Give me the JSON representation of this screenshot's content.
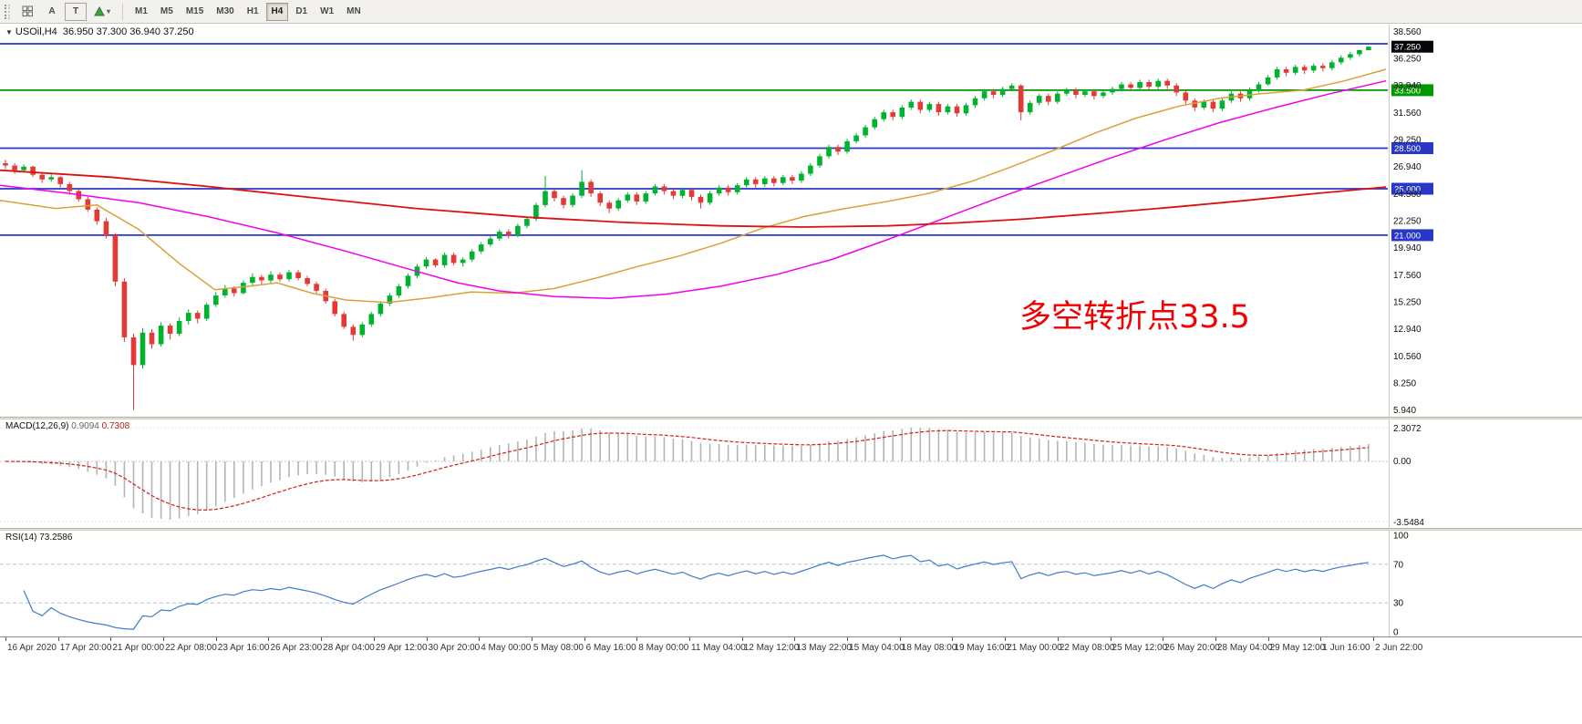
{
  "toolbar": {
    "tools": {
      "annotate_a": "A",
      "annotate_t": "T",
      "dropdown_chevron": "▾"
    },
    "timeframes": [
      "M1",
      "M5",
      "M15",
      "M30",
      "H1",
      "H4",
      "D1",
      "W1",
      "MN"
    ],
    "active_timeframe": "H4"
  },
  "chart": {
    "collapse_arrow": "▼",
    "symbol_period": "USOil,H4",
    "ohlc_readout": "36.950 37.300 36.940 37.250",
    "annotation": {
      "text": "多空转折点33.5",
      "color": "#f10000"
    }
  },
  "chart_data": {
    "type": "candlestick",
    "symbol": "USOil",
    "timeframe": "H4",
    "current_price": "37.250",
    "ohlc_last": {
      "open": "36.950",
      "high": "37.300",
      "low": "36.940",
      "close": "37.250"
    },
    "price_range": {
      "min": 5.35,
      "max": 39.15
    },
    "price_axis_labels": [
      "38.560",
      "36.250",
      "33.940",
      "31.560",
      "29.250",
      "26.940",
      "24.560",
      "22.250",
      "19.940",
      "17.560",
      "15.250",
      "12.940",
      "10.560",
      "8.250",
      "5.940"
    ],
    "time_axis_labels": [
      "16 Apr 2020",
      "17 Apr 20:00",
      "21 Apr 00:00",
      "22 Apr 08:00",
      "23 Apr 16:00",
      "26 Apr 23:00",
      "28 Apr 04:00",
      "29 Apr 12:00",
      "30 Apr 20:00",
      "4 May 00:00",
      "5 May 08:00",
      "6 May 16:00",
      "8 May 00:00",
      "11 May 04:00",
      "12 May 12:00",
      "13 May 22:00",
      "15 May 04:00",
      "18 May 08:00",
      "19 May 16:00",
      "21 May 00:00",
      "22 May 08:00",
      "25 May 12:00",
      "26 May 20:00",
      "28 May 04:00",
      "29 May 12:00",
      "1 Jun 16:00",
      "2 Jun 22:00"
    ],
    "colors": {
      "bull": "#00b22d",
      "bear": "#e53935",
      "price_box": "#06060a"
    },
    "horizontal_lines": [
      {
        "price": 37.5,
        "color": "#2937c8",
        "label": ""
      },
      {
        "price": 33.5,
        "color": "#009a00",
        "label": "33.500"
      },
      {
        "price": 28.5,
        "color": "#2937c8",
        "label": "28.500"
      },
      {
        "price": 25.0,
        "color": "#2937c8",
        "label": "25.000"
      },
      {
        "price": 21.0,
        "color": "#2937c8",
        "label": "21.000"
      }
    ],
    "moving_averages": [
      {
        "name": "ma-fast-orange",
        "color": "#d9a13a",
        "points": [
          [
            0,
            24.0
          ],
          [
            0.04,
            23.3
          ],
          [
            0.07,
            23.6
          ],
          [
            0.1,
            21.5
          ],
          [
            0.13,
            18.5
          ],
          [
            0.155,
            16.3
          ],
          [
            0.18,
            16.6
          ],
          [
            0.2,
            16.9
          ],
          [
            0.225,
            16.0
          ],
          [
            0.25,
            15.4
          ],
          [
            0.28,
            15.2
          ],
          [
            0.31,
            15.6
          ],
          [
            0.34,
            16.1
          ],
          [
            0.37,
            16.0
          ],
          [
            0.4,
            16.4
          ],
          [
            0.43,
            17.3
          ],
          [
            0.46,
            18.3
          ],
          [
            0.49,
            19.2
          ],
          [
            0.52,
            20.3
          ],
          [
            0.55,
            21.6
          ],
          [
            0.58,
            22.6
          ],
          [
            0.61,
            23.3
          ],
          [
            0.64,
            23.9
          ],
          [
            0.67,
            24.6
          ],
          [
            0.7,
            25.6
          ],
          [
            0.73,
            26.9
          ],
          [
            0.76,
            28.3
          ],
          [
            0.79,
            29.8
          ],
          [
            0.82,
            31.1
          ],
          [
            0.85,
            32.1
          ],
          [
            0.88,
            32.8
          ],
          [
            0.91,
            33.2
          ],
          [
            0.94,
            33.5
          ],
          [
            0.97,
            34.3
          ],
          [
            1.0,
            35.3
          ]
        ]
      },
      {
        "name": "ma-mid-magenta",
        "color": "#f000f0",
        "points": [
          [
            0,
            25.3
          ],
          [
            0.05,
            24.6
          ],
          [
            0.1,
            23.8
          ],
          [
            0.15,
            22.6
          ],
          [
            0.2,
            21.2
          ],
          [
            0.25,
            19.6
          ],
          [
            0.3,
            17.9
          ],
          [
            0.33,
            16.9
          ],
          [
            0.36,
            16.2
          ],
          [
            0.4,
            15.7
          ],
          [
            0.44,
            15.55
          ],
          [
            0.48,
            15.9
          ],
          [
            0.52,
            16.6
          ],
          [
            0.56,
            17.6
          ],
          [
            0.6,
            18.9
          ],
          [
            0.64,
            20.6
          ],
          [
            0.68,
            22.4
          ],
          [
            0.72,
            24.2
          ],
          [
            0.76,
            25.9
          ],
          [
            0.8,
            27.6
          ],
          [
            0.84,
            29.2
          ],
          [
            0.88,
            30.7
          ],
          [
            0.92,
            32.0
          ],
          [
            0.96,
            33.2
          ],
          [
            1.0,
            34.3
          ]
        ]
      },
      {
        "name": "ma-slow-red",
        "color": "#dd1111",
        "points": [
          [
            0,
            26.6
          ],
          [
            0.08,
            26.0
          ],
          [
            0.15,
            25.2
          ],
          [
            0.22,
            24.3
          ],
          [
            0.3,
            23.3
          ],
          [
            0.38,
            22.55
          ],
          [
            0.45,
            22.1
          ],
          [
            0.52,
            21.8
          ],
          [
            0.58,
            21.7
          ],
          [
            0.64,
            21.8
          ],
          [
            0.69,
            22.05
          ],
          [
            0.74,
            22.4
          ],
          [
            0.8,
            22.95
          ],
          [
            0.85,
            23.45
          ],
          [
            0.9,
            24.0
          ],
          [
            0.95,
            24.6
          ],
          [
            1.0,
            25.15
          ]
        ]
      }
    ],
    "candles": [
      [
        27.2,
        27.5,
        26.7,
        27.0
      ],
      [
        27.0,
        27.2,
        26.3,
        26.6
      ],
      [
        26.6,
        27.1,
        26.4,
        26.9
      ],
      [
        26.9,
        27.0,
        26.0,
        26.2
      ],
      [
        26.2,
        26.4,
        25.5,
        25.8
      ],
      [
        25.8,
        26.3,
        25.6,
        26.0
      ],
      [
        26.0,
        26.1,
        25.1,
        25.4
      ],
      [
        25.4,
        25.6,
        24.5,
        24.8
      ],
      [
        24.8,
        25.0,
        23.9,
        24.1
      ],
      [
        24.1,
        24.3,
        23.0,
        23.2
      ],
      [
        23.2,
        23.4,
        21.9,
        22.2
      ],
      [
        22.2,
        22.5,
        20.7,
        21.0
      ],
      [
        21.0,
        21.2,
        16.6,
        17.0
      ],
      [
        17.0,
        17.3,
        11.8,
        12.2
      ],
      [
        12.2,
        12.5,
        5.94,
        9.8
      ],
      [
        9.8,
        13.0,
        9.5,
        12.6
      ],
      [
        12.6,
        12.9,
        11.2,
        11.6
      ],
      [
        11.6,
        13.5,
        11.4,
        13.2
      ],
      [
        13.2,
        13.4,
        12.0,
        12.5
      ],
      [
        12.5,
        13.9,
        12.3,
        13.6
      ],
      [
        13.6,
        14.6,
        13.3,
        14.3
      ],
      [
        14.3,
        14.5,
        13.4,
        13.8
      ],
      [
        13.8,
        15.2,
        13.6,
        15.0
      ],
      [
        15.0,
        16.1,
        14.8,
        15.8
      ],
      [
        15.8,
        16.7,
        15.6,
        16.4
      ],
      [
        16.4,
        16.6,
        15.7,
        16.0
      ],
      [
        16.0,
        17.1,
        15.9,
        16.9
      ],
      [
        16.9,
        17.7,
        16.7,
        17.4
      ],
      [
        17.4,
        17.6,
        16.8,
        17.1
      ],
      [
        17.1,
        17.9,
        16.9,
        17.6
      ],
      [
        17.6,
        17.8,
        17.0,
        17.2
      ],
      [
        17.2,
        18.0,
        17.0,
        17.8
      ],
      [
        17.8,
        18.0,
        17.1,
        17.3
      ],
      [
        17.3,
        17.5,
        16.6,
        16.8
      ],
      [
        16.8,
        17.0,
        16.0,
        16.2
      ],
      [
        16.2,
        16.4,
        15.1,
        15.3
      ],
      [
        15.3,
        15.5,
        14.0,
        14.2
      ],
      [
        14.2,
        14.4,
        12.9,
        13.1
      ],
      [
        13.1,
        13.3,
        11.9,
        12.4
      ],
      [
        12.4,
        13.5,
        12.2,
        13.3
      ],
      [
        13.3,
        14.4,
        13.1,
        14.2
      ],
      [
        14.2,
        15.3,
        14.0,
        15.1
      ],
      [
        15.1,
        16.0,
        14.9,
        15.8
      ],
      [
        15.8,
        16.8,
        15.6,
        16.6
      ],
      [
        16.6,
        17.7,
        16.4,
        17.5
      ],
      [
        17.5,
        18.5,
        17.3,
        18.3
      ],
      [
        18.3,
        19.1,
        18.1,
        18.9
      ],
      [
        18.9,
        19.0,
        18.2,
        18.4
      ],
      [
        18.4,
        19.5,
        18.2,
        19.3
      ],
      [
        19.3,
        19.5,
        18.4,
        18.6
      ],
      [
        18.6,
        19.1,
        18.3,
        18.9
      ],
      [
        18.9,
        19.8,
        18.7,
        19.6
      ],
      [
        19.6,
        20.4,
        19.4,
        20.2
      ],
      [
        20.2,
        20.9,
        20.0,
        20.7
      ],
      [
        20.7,
        21.5,
        20.5,
        21.3
      ],
      [
        21.3,
        21.5,
        20.7,
        21.0
      ],
      [
        21.0,
        22.0,
        20.8,
        21.8
      ],
      [
        21.8,
        22.6,
        21.6,
        22.4
      ],
      [
        22.4,
        23.8,
        22.2,
        23.6
      ],
      [
        23.6,
        26.1,
        23.4,
        24.8
      ],
      [
        24.8,
        25.0,
        23.9,
        24.2
      ],
      [
        24.2,
        24.4,
        23.3,
        23.6
      ],
      [
        23.6,
        24.6,
        23.4,
        24.4
      ],
      [
        24.4,
        26.6,
        24.2,
        25.6
      ],
      [
        25.6,
        25.8,
        24.3,
        24.6
      ],
      [
        24.6,
        24.8,
        23.5,
        23.8
      ],
      [
        23.8,
        24.0,
        22.9,
        23.3
      ],
      [
        23.3,
        24.2,
        23.1,
        24.0
      ],
      [
        24.0,
        24.7,
        23.8,
        24.5
      ],
      [
        24.5,
        24.7,
        23.6,
        23.9
      ],
      [
        23.9,
        24.8,
        23.7,
        24.6
      ],
      [
        24.6,
        25.4,
        24.4,
        25.2
      ],
      [
        25.2,
        25.4,
        24.5,
        24.8
      ],
      [
        24.8,
        25.0,
        24.1,
        24.4
      ],
      [
        24.4,
        25.1,
        24.2,
        24.9
      ],
      [
        24.9,
        25.1,
        24.0,
        24.3
      ],
      [
        24.3,
        24.5,
        23.3,
        23.8
      ],
      [
        23.8,
        24.8,
        23.6,
        24.6
      ],
      [
        24.6,
        25.3,
        24.4,
        25.1
      ],
      [
        25.1,
        25.3,
        24.4,
        24.7
      ],
      [
        24.7,
        25.5,
        24.5,
        25.3
      ],
      [
        25.3,
        26.0,
        25.1,
        25.8
      ],
      [
        25.8,
        26.0,
        25.1,
        25.4
      ],
      [
        25.4,
        26.1,
        25.2,
        25.9
      ],
      [
        25.9,
        26.1,
        25.2,
        25.5
      ],
      [
        25.5,
        26.2,
        25.3,
        26.0
      ],
      [
        26.0,
        26.2,
        25.4,
        25.7
      ],
      [
        25.7,
        26.5,
        25.5,
        26.3
      ],
      [
        26.3,
        27.2,
        26.1,
        27.0
      ],
      [
        27.0,
        28.0,
        26.8,
        27.8
      ],
      [
        27.8,
        28.8,
        27.6,
        28.6
      ],
      [
        28.6,
        28.8,
        27.9,
        28.2
      ],
      [
        28.2,
        29.3,
        28.0,
        29.1
      ],
      [
        29.1,
        29.8,
        28.9,
        29.6
      ],
      [
        29.6,
        30.5,
        29.4,
        30.3
      ],
      [
        30.3,
        31.2,
        30.1,
        31.0
      ],
      [
        31.0,
        31.8,
        30.8,
        31.6
      ],
      [
        31.6,
        31.8,
        30.9,
        31.2
      ],
      [
        31.2,
        32.2,
        31.0,
        32.0
      ],
      [
        32.0,
        32.7,
        31.8,
        32.5
      ],
      [
        32.5,
        32.7,
        31.5,
        31.8
      ],
      [
        31.8,
        32.5,
        31.6,
        32.3
      ],
      [
        32.3,
        32.5,
        31.3,
        31.6
      ],
      [
        31.6,
        32.3,
        31.4,
        32.1
      ],
      [
        32.1,
        32.3,
        31.2,
        31.5
      ],
      [
        31.5,
        32.4,
        31.3,
        32.2
      ],
      [
        32.2,
        33.0,
        32.0,
        32.8
      ],
      [
        32.8,
        33.6,
        32.6,
        33.4
      ],
      [
        33.4,
        33.6,
        32.8,
        33.1
      ],
      [
        33.1,
        33.8,
        32.9,
        33.6
      ],
      [
        33.6,
        34.1,
        33.4,
        33.9
      ],
      [
        33.9,
        34.0,
        30.9,
        31.6
      ],
      [
        31.6,
        32.6,
        31.4,
        32.4
      ],
      [
        32.4,
        33.2,
        32.2,
        33.0
      ],
      [
        33.0,
        33.2,
        32.2,
        32.5
      ],
      [
        32.5,
        33.4,
        32.3,
        33.2
      ],
      [
        33.2,
        33.7,
        33.0,
        33.5
      ],
      [
        33.5,
        33.7,
        32.8,
        33.1
      ],
      [
        33.1,
        33.6,
        32.9,
        33.4
      ],
      [
        33.4,
        33.6,
        32.7,
        33.0
      ],
      [
        33.0,
        33.5,
        32.8,
        33.3
      ],
      [
        33.3,
        33.8,
        33.1,
        33.6
      ],
      [
        33.6,
        34.2,
        33.4,
        34.0
      ],
      [
        34.0,
        34.2,
        33.4,
        33.7
      ],
      [
        33.7,
        34.4,
        33.5,
        34.2
      ],
      [
        34.2,
        34.4,
        33.5,
        33.8
      ],
      [
        33.8,
        34.5,
        33.6,
        34.3
      ],
      [
        34.3,
        34.5,
        33.6,
        33.9
      ],
      [
        33.9,
        34.1,
        33.0,
        33.3
      ],
      [
        33.3,
        33.5,
        32.3,
        32.6
      ],
      [
        32.6,
        32.8,
        31.7,
        32.0
      ],
      [
        32.0,
        32.7,
        31.8,
        32.5
      ],
      [
        32.5,
        32.7,
        31.6,
        31.9
      ],
      [
        31.9,
        32.8,
        31.7,
        32.6
      ],
      [
        32.6,
        33.4,
        32.4,
        33.2
      ],
      [
        33.2,
        33.4,
        32.5,
        32.8
      ],
      [
        32.8,
        33.7,
        32.6,
        33.5
      ],
      [
        33.5,
        34.2,
        33.3,
        34.0
      ],
      [
        34.0,
        34.8,
        33.9,
        34.6
      ],
      [
        34.6,
        35.5,
        34.4,
        35.3
      ],
      [
        35.3,
        35.5,
        34.7,
        35.0
      ],
      [
        35.0,
        35.7,
        34.8,
        35.5
      ],
      [
        35.5,
        35.7,
        34.9,
        35.2
      ],
      [
        35.2,
        35.8,
        35.0,
        35.6
      ],
      [
        35.6,
        35.8,
        35.1,
        35.4
      ],
      [
        35.4,
        36.1,
        35.2,
        35.9
      ],
      [
        35.9,
        36.5,
        35.7,
        36.3
      ],
      [
        36.3,
        36.8,
        36.1,
        36.6
      ],
      [
        36.6,
        37.0,
        36.4,
        36.95
      ],
      [
        36.95,
        37.3,
        36.94,
        37.25
      ]
    ],
    "macd": {
      "label": "MACD(12,26,9)",
      "value_main": "0.9094",
      "value_signal": "0.7308",
      "fast": 12,
      "slow": 26,
      "signal": 9,
      "axis_labels": [
        "2.3072",
        "0.00",
        "-3.5484"
      ],
      "histogram_color": "#b4b4b4",
      "signal_color": "#d02020"
    },
    "rsi": {
      "label": "RSI(14)",
      "value": "73.2586",
      "period": 14,
      "axis_labels": [
        "100",
        "70",
        "30",
        "0"
      ],
      "levels": [
        70,
        30
      ],
      "line_color": "#3f7cc8"
    }
  }
}
